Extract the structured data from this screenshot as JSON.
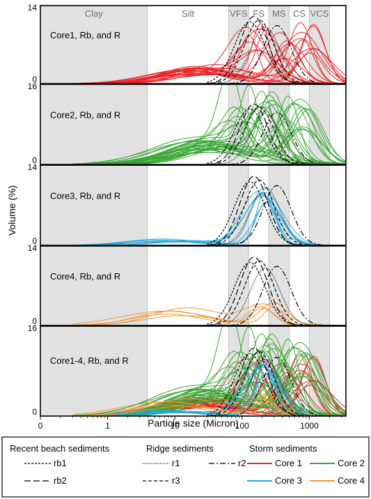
{
  "chart_data": {
    "type": "line",
    "xlabel": "Particle size (Micron)",
    "ylabel": "Volume (%)",
    "x_scale": "log",
    "xlim": [
      0.1,
      3500
    ],
    "x_ticks": [
      {
        "value": 0.1,
        "label": "0"
      },
      {
        "value": 1,
        "label": "1"
      },
      {
        "value": 10,
        "label": "10"
      },
      {
        "value": 100,
        "label": "100"
      },
      {
        "value": 1000,
        "label": "1000"
      }
    ],
    "size_classes": [
      {
        "label": "Clay",
        "from": 0.1,
        "to": 3.9,
        "shaded": true
      },
      {
        "label": "Silt",
        "from": 3.9,
        "to": 63,
        "shaded": false
      },
      {
        "label": "VFS",
        "from": 63,
        "to": 125,
        "shaded": true
      },
      {
        "label": "FS",
        "from": 125,
        "to": 250,
        "shaded": false
      },
      {
        "label": "MS",
        "from": 250,
        "to": 500,
        "shaded": true
      },
      {
        "label": "CS",
        "from": 500,
        "to": 1000,
        "shaded": false
      },
      {
        "label": "VCS",
        "from": 1000,
        "to": 2000,
        "shaded": true
      }
    ],
    "panels": [
      {
        "label": "Core1, Rb, and R",
        "ymax": 14,
        "ymin_label": "0",
        "ymax_label": "14",
        "storm": [
          "Core 1"
        ],
        "show_classes": true
      },
      {
        "label": "Core2, Rb, and R",
        "ymax": 16,
        "ymin_label": "0",
        "ymax_label": "16",
        "storm": [
          "Core 2"
        ],
        "show_classes": false
      },
      {
        "label": "Core3, Rb, and R",
        "ymax": 14,
        "ymin_label": "0",
        "ymax_label": "14",
        "storm": [
          "Core 3"
        ],
        "show_classes": false
      },
      {
        "label": "Core4, Rb, and R",
        "ymax": 14,
        "ymin_label": "0",
        "ymax_label": "14",
        "storm": [
          "Core 4"
        ],
        "show_classes": false
      },
      {
        "label": "Core1-4, Rb, and R",
        "ymax": 16,
        "ymin_label": "0",
        "ymax_label": "16",
        "storm": [
          "Core 1",
          "Core 2",
          "Core 3",
          "Core 4"
        ],
        "show_classes": false
      }
    ],
    "reference_series": [
      {
        "name": "rb1",
        "group": "Recent beach sediments",
        "dash": "3,2",
        "peak_x": 130,
        "peak_y": 11.5,
        "width": 0.23
      },
      {
        "name": "rb2",
        "group": "Recent beach sediments",
        "dash": "9,4",
        "peak_x": 150,
        "peak_y": 12.5,
        "width": 0.21
      },
      {
        "name": "r1",
        "group": "Ridge sediments",
        "dash": "1,1.5",
        "peak_x": 220,
        "peak_y": 10.5,
        "width": 0.22
      },
      {
        "name": "r2",
        "group": "Ridge sediments",
        "dash": "8,3,2,3",
        "peak_x": 330,
        "peak_y": 10.8,
        "width": 0.21
      },
      {
        "name": "r3",
        "group": "Ridge sediments",
        "dash": "5,3",
        "peak_x": 180,
        "peak_y": 11.8,
        "width": 0.22
      }
    ],
    "storm_series": [
      {
        "name": "Core 1",
        "group": "Storm sediments",
        "color": "#e8262b",
        "count": 22,
        "peak_min": 90,
        "peak_max": 1400,
        "peak_y_min": 4,
        "peak_y_max": 11.5,
        "fine_y": 3.5,
        "fine_center": 25
      },
      {
        "name": "Core 2",
        "group": "Storm sediments",
        "color": "#3aa635",
        "count": 30,
        "peak_min": 60,
        "peak_max": 1100,
        "peak_y_min": 5,
        "peak_y_max": 15.5,
        "fine_y": 5.5,
        "fine_center": 35
      },
      {
        "name": "Core 3",
        "group": "Storm sediments",
        "color": "#1fa8df",
        "count": 8,
        "peak_min": 170,
        "peak_max": 260,
        "peak_y_min": 7.5,
        "peak_y_max": 10.5,
        "fine_y": 1.1,
        "fine_center": 8
      },
      {
        "name": "Core 4",
        "group": "Storm sediments",
        "color": "#f3932f",
        "count": 5,
        "peak_min": 180,
        "peak_max": 300,
        "peak_y_min": 1.5,
        "peak_y_max": 4.5,
        "fine_y": 3.3,
        "fine_center": 12
      }
    ]
  },
  "legend": {
    "groups": [
      {
        "title": "Recent beach sediments",
        "items": [
          "rb1",
          "rb2"
        ]
      },
      {
        "title": "Ridge sediments",
        "items": [
          "r1",
          "r2",
          "r3"
        ]
      },
      {
        "title": "Storm sediments",
        "items": [
          "Core 1",
          "Core 2",
          "Core 3",
          "Core 4"
        ]
      }
    ]
  }
}
